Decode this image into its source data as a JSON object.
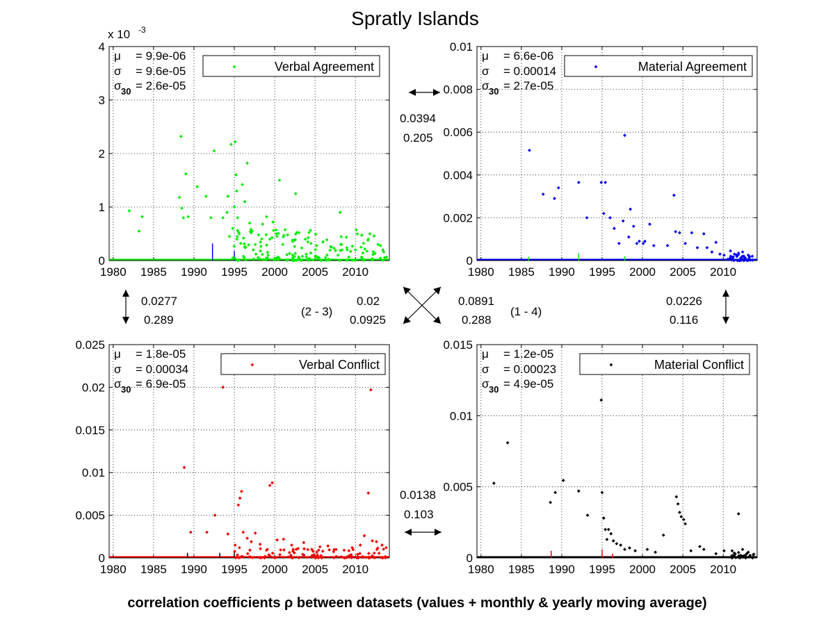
{
  "title": "Spratly Islands",
  "footer": "correlation coefficients ρ between datasets (values + monthly & yearly moving average)",
  "colors": {
    "verbal_agreement": "#00ee00",
    "material_agreement": "#0000ee",
    "verbal_conflict": "#ee0000",
    "material_conflict": "#000000"
  },
  "chart_data": [
    {
      "type": "scatter",
      "legend": "Verbal Agreement",
      "color": "#00ee00",
      "stats": {
        "mu": "= 9.9e-06",
        "sigma": "= 9.6e-05",
        "sigma30": "= 2.6e-05"
      },
      "exponent_label": "x 10",
      "exponent": "-3",
      "xlim": [
        1979.5,
        2014.2
      ],
      "ylim": [
        0,
        0.004
      ],
      "xticks": [
        "1980",
        "1985",
        "1990",
        "1995",
        "2000",
        "2005",
        "2010"
      ],
      "yticks": [
        "0",
        "1",
        "2",
        "3",
        "4"
      ],
      "points": [
        [
          1982.0,
          0.00093
        ],
        [
          1983.2,
          0.00055
        ],
        [
          1983.6,
          0.00082
        ],
        [
          1988.2,
          0.00118
        ],
        [
          1988.4,
          0.00232
        ],
        [
          1988.5,
          0.00098
        ],
        [
          1988.7,
          0.0008
        ],
        [
          1989.0,
          0.00162
        ],
        [
          1989.3,
          0.00082
        ],
        [
          1990.4,
          0.00138
        ],
        [
          1991.5,
          0.0012
        ],
        [
          1992.5,
          0.00205
        ],
        [
          1992.1,
          0.0008
        ],
        [
          1993.6,
          0.0008
        ],
        [
          1994.1,
          0.0009
        ],
        [
          1994.2,
          0.0012
        ],
        [
          1994.4,
          0.00045
        ],
        [
          1994.6,
          0.00217
        ],
        [
          1994.8,
          0.0006
        ],
        [
          1995.0,
          0.001
        ],
        [
          1995.1,
          0.00222
        ],
        [
          1995.2,
          0.0016
        ],
        [
          1995.3,
          0.0013
        ],
        [
          1995.4,
          0.0008
        ],
        [
          1995.6,
          0.0005
        ],
        [
          1995.8,
          0.00032
        ],
        [
          1996.0,
          0.00142
        ],
        [
          1996.3,
          0.0011
        ],
        [
          1996.6,
          0.00182
        ],
        [
          1996.9,
          0.0007
        ],
        [
          1997.2,
          0.00055
        ],
        [
          1997.6,
          0.0003
        ],
        [
          1998.0,
          0.00048
        ],
        [
          1998.5,
          0.00068
        ],
        [
          1999.0,
          0.00082
        ],
        [
          1999.4,
          0.0004
        ],
        [
          1999.8,
          0.00072
        ],
        [
          2000.2,
          0.0005
        ],
        [
          2000.6,
          0.0015
        ],
        [
          2001.0,
          0.0003
        ],
        [
          2001.6,
          0.00048
        ],
        [
          2002.2,
          0.00038
        ],
        [
          2002.6,
          0.00125
        ],
        [
          2003.0,
          0.00052
        ],
        [
          2003.8,
          0.0004
        ],
        [
          2004.5,
          0.00032
        ],
        [
          2005.2,
          0.00028
        ],
        [
          2006.0,
          0.00035
        ],
        [
          2007.0,
          0.00025
        ],
        [
          2008.1,
          0.0009
        ],
        [
          2008.3,
          0.0003
        ],
        [
          2009.0,
          0.0002
        ],
        [
          2010.0,
          0.0002
        ],
        [
          2011.0,
          0.00032
        ],
        [
          2011.6,
          0.0004
        ],
        [
          2012.3,
          0.00046
        ],
        [
          2012.8,
          0.0003
        ],
        [
          2013.4,
          0.0002
        ]
      ],
      "dense": {
        "from": 1994.8,
        "to": 2013.9,
        "count": 150,
        "max": 0.0006
      },
      "spikes": [
        {
          "x": 1992.3,
          "y": 0.00032,
          "color": "#0000ee"
        },
        {
          "x": 1995.0,
          "y": 0.00018,
          "color": "#0000ee"
        }
      ]
    },
    {
      "type": "scatter",
      "legend": "Material Agreement",
      "color": "#0000ee",
      "stats": {
        "mu": "= 6.6e-06",
        "sigma": "= 0.00014",
        "sigma30": "= 2.7e-05"
      },
      "xlim": [
        1979.5,
        2014.2
      ],
      "ylim": [
        0,
        0.01
      ],
      "xticks": [
        "1980",
        "1985",
        "1990",
        "1995",
        "2000",
        "2005",
        "2010"
      ],
      "yticks": [
        "0",
        "0.002",
        "0.004",
        "0.006",
        "0.008",
        "0.01"
      ],
      "points": [
        [
          1986.0,
          0.00515
        ],
        [
          1987.7,
          0.0031
        ],
        [
          1989.1,
          0.0029
        ],
        [
          1989.6,
          0.0034
        ],
        [
          1992.1,
          0.00365
        ],
        [
          1993.1,
          0.002
        ],
        [
          1994.9,
          0.00365
        ],
        [
          1995.4,
          0.00365
        ],
        [
          1995.2,
          0.0022
        ],
        [
          1996.0,
          0.002
        ],
        [
          1996.5,
          0.0015
        ],
        [
          1997.1,
          0.0008
        ],
        [
          1997.6,
          0.00185
        ],
        [
          1997.8,
          0.00585
        ],
        [
          1998.3,
          0.0011
        ],
        [
          1998.5,
          0.0024
        ],
        [
          1998.9,
          0.0016
        ],
        [
          1999.3,
          0.0008
        ],
        [
          1999.6,
          0.0009
        ],
        [
          2000.1,
          0.0008
        ],
        [
          2000.3,
          0.0009
        ],
        [
          2000.9,
          0.0017
        ],
        [
          2001.4,
          0.0007
        ],
        [
          2003.1,
          0.0007
        ],
        [
          2003.9,
          0.00305
        ],
        [
          2004.1,
          0.00135
        ],
        [
          2004.6,
          0.0013
        ],
        [
          2005.3,
          0.0008
        ],
        [
          2006.1,
          0.0013
        ],
        [
          2006.8,
          0.0006
        ],
        [
          2007.6,
          0.00125
        ],
        [
          2008.0,
          0.0006
        ],
        [
          2008.6,
          0.0004
        ],
        [
          2009.1,
          0.00085
        ],
        [
          2009.6,
          0.0003
        ],
        [
          2010.1,
          0.00025
        ],
        [
          2010.9,
          0.00045
        ],
        [
          2011.4,
          0.0003
        ],
        [
          2011.9,
          0.00035
        ],
        [
          2012.4,
          0.0004
        ],
        [
          2013.1,
          0.00025
        ],
        [
          2013.6,
          0.0002
        ]
      ],
      "dense": {
        "from": 2010.5,
        "to": 2013.9,
        "count": 40,
        "max": 0.0003
      },
      "spikes": [
        {
          "x": 1992.1,
          "y": 0.00035,
          "color": "#00ee00"
        },
        {
          "x": 1997.8,
          "y": 0.0002,
          "color": "#00ee00"
        },
        {
          "x": 1985.9,
          "y": 0.00018,
          "color": "#00ee00"
        }
      ]
    },
    {
      "type": "scatter",
      "legend": "Verbal Conflict",
      "color": "#ee0000",
      "stats": {
        "mu": "= 1.8e-05",
        "sigma": "= 0.00034",
        "sigma30": "= 6.9e-05"
      },
      "xlim": [
        1979.5,
        2014.2
      ],
      "ylim": [
        0,
        0.025
      ],
      "xticks": [
        "1980",
        "1985",
        "1990",
        "1995",
        "2000",
        "2005",
        "2010"
      ],
      "yticks": [
        "0",
        "0.005",
        "0.01",
        "0.015",
        "0.02",
        "0.025"
      ],
      "points": [
        [
          1988.8,
          0.0106
        ],
        [
          1989.6,
          0.003
        ],
        [
          1991.6,
          0.003
        ],
        [
          1992.6,
          0.005
        ],
        [
          1993.6,
          0.02
        ],
        [
          1994.2,
          0.0028
        ],
        [
          1995.1,
          0.0015
        ],
        [
          1995.5,
          0.0062
        ],
        [
          1995.7,
          0.007
        ],
        [
          1995.9,
          0.0078
        ],
        [
          1996.1,
          0.003
        ],
        [
          1996.6,
          0.0023
        ],
        [
          1997.1,
          0.0019
        ],
        [
          1997.6,
          0.0029
        ],
        [
          1998.2,
          0.0016
        ],
        [
          1999.1,
          0.001
        ],
        [
          1999.4,
          0.0085
        ],
        [
          1999.7,
          0.0088
        ],
        [
          2000.3,
          0.0021
        ],
        [
          2001.1,
          0.0022
        ],
        [
          2002.1,
          0.0015
        ],
        [
          2002.9,
          0.0011
        ],
        [
          2003.6,
          0.0018
        ],
        [
          2004.6,
          0.001
        ],
        [
          2005.6,
          0.0013
        ],
        [
          2006.6,
          0.0014
        ],
        [
          2007.6,
          0.001
        ],
        [
          2008.6,
          0.0009
        ],
        [
          2009.6,
          0.0012
        ],
        [
          2010.6,
          0.0015
        ],
        [
          2011.1,
          0.0026
        ],
        [
          2011.6,
          0.0076
        ],
        [
          2011.9,
          0.0197
        ],
        [
          2012.1,
          0.002
        ],
        [
          2012.6,
          0.0019
        ],
        [
          2013.3,
          0.0015
        ],
        [
          2013.8,
          0.0012
        ]
      ],
      "dense": {
        "from": 1995.0,
        "to": 2013.9,
        "count": 110,
        "max": 0.0012
      },
      "spikes": [
        {
          "x": 1989.2,
          "y": 0.0006,
          "color": "#000000"
        },
        {
          "x": 1993.2,
          "y": 0.0006,
          "color": "#000000"
        },
        {
          "x": 1995.0,
          "y": 0.0008,
          "color": "#000000"
        }
      ]
    },
    {
      "type": "scatter",
      "legend": "Material Conflict",
      "color": "#000000",
      "stats": {
        "mu": "= 1.2e-05",
        "sigma": "= 0.00023",
        "sigma30": "= 4.9e-05"
      },
      "xlim": [
        1979.5,
        2014.2
      ],
      "ylim": [
        0,
        0.015
      ],
      "xticks": [
        "1980",
        "1985",
        "1990",
        "1995",
        "2000",
        "2005",
        "2010"
      ],
      "yticks": [
        "0",
        "0.005",
        "0.01",
        "0.015"
      ],
      "points": [
        [
          1981.6,
          0.00525
        ],
        [
          1983.3,
          0.0081
        ],
        [
          1988.6,
          0.0039
        ],
        [
          1989.2,
          0.0046
        ],
        [
          1990.2,
          0.00545
        ],
        [
          1992.1,
          0.0047
        ],
        [
          1993.2,
          0.003
        ],
        [
          1994.9,
          0.0111
        ],
        [
          1995.0,
          0.0046
        ],
        [
          1995.2,
          0.0028
        ],
        [
          1995.4,
          0.002
        ],
        [
          1995.6,
          0.0013
        ],
        [
          1995.8,
          0.002
        ],
        [
          1996.1,
          0.0017
        ],
        [
          1996.4,
          0.0012
        ],
        [
          1996.8,
          0.001
        ],
        [
          1997.3,
          0.0009
        ],
        [
          1997.8,
          0.0006
        ],
        [
          1998.4,
          0.0007
        ],
        [
          1999.1,
          0.0005
        ],
        [
          2000.6,
          0.0006
        ],
        [
          2001.6,
          0.0004
        ],
        [
          2002.6,
          0.0016
        ],
        [
          2004.2,
          0.0043
        ],
        [
          2004.4,
          0.0038
        ],
        [
          2004.6,
          0.0032
        ],
        [
          2004.8,
          0.0029
        ],
        [
          2005.1,
          0.0027
        ],
        [
          2005.3,
          0.0024
        ],
        [
          2006.0,
          0.0005
        ],
        [
          2007.1,
          0.0008
        ],
        [
          2007.6,
          0.0006
        ],
        [
          2009.1,
          0.0003
        ],
        [
          2010.1,
          0.0005
        ],
        [
          2011.1,
          0.0005
        ],
        [
          2011.9,
          0.0031
        ],
        [
          2012.4,
          0.0006
        ],
        [
          2013.1,
          0.0004
        ]
      ],
      "dense": {
        "from": 2011.0,
        "to": 2013.9,
        "count": 35,
        "max": 0.0004
      },
      "spikes": [
        {
          "x": 1988.7,
          "y": 0.0005,
          "color": "#ee0000"
        },
        {
          "x": 1995.0,
          "y": 0.0006,
          "color": "#ee0000"
        },
        {
          "x": 1996.3,
          "y": 0.0003,
          "color": "#ee0000"
        }
      ]
    }
  ],
  "correlations": {
    "c12": [
      "0.0394",
      "0.205"
    ],
    "c13": [
      "0.0277",
      "0.289"
    ],
    "c24": [
      "0.0226",
      "0.116"
    ],
    "c34": [
      "0.0138",
      "0.103"
    ],
    "c23": [
      "0.02",
      "0.0925"
    ],
    "c14": [
      "0.0891",
      "0.288"
    ],
    "label_23": "(2 - 3)",
    "label_14": "(1 - 4)"
  }
}
